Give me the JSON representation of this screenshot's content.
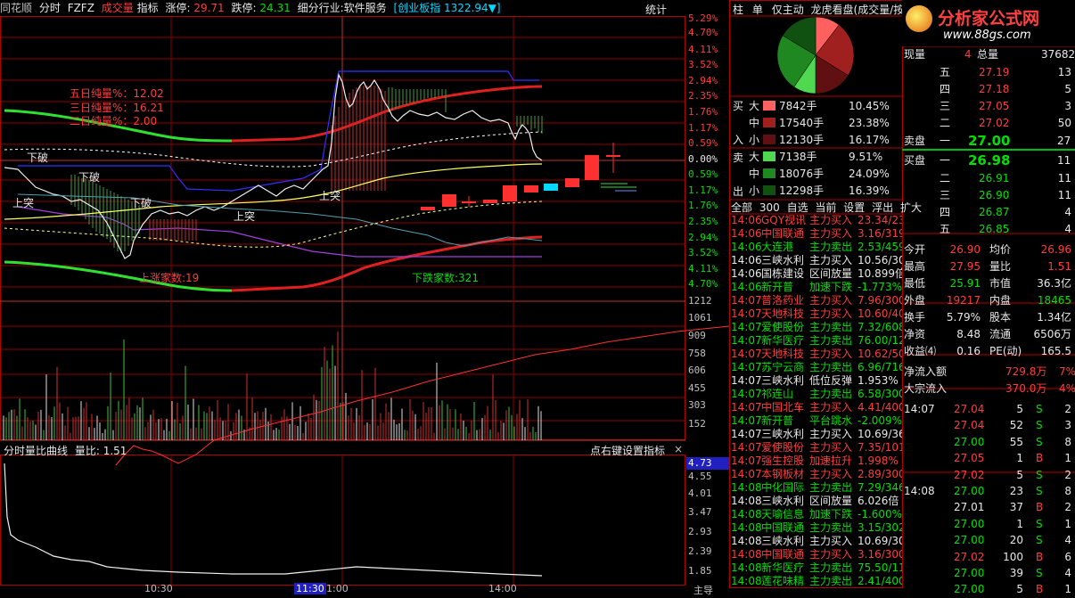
{
  "app": {
    "name": "同花顺",
    "mode": "分时",
    "code": "FZFZ"
  },
  "topbar": {
    "cjl": "成交量",
    "zb": "指标",
    "zt_label": "涨停:",
    "zt_val": "29.71",
    "dt_label": "跌停:",
    "dt_val": "24.31",
    "industry": "细分行业:软件服务",
    "index_label": "[创业板指",
    "index_val": "1322.94▼]",
    "stat": "统计"
  },
  "pct_up": [
    "5.29%",
    "4.70%",
    "4.11%",
    "3.52%",
    "2.94%",
    "2.35%",
    "1.76%",
    "1.17%",
    "0.59%"
  ],
  "pct_zero": "0.00%",
  "pct_down": [
    "0.59%",
    "1.17%",
    "1.76%",
    "2.35%",
    "2.94%",
    "3.52%",
    "4.11%",
    "4.70%"
  ],
  "vol_axis": [
    "1212",
    "1061",
    "909",
    "758",
    "606",
    "455",
    "303",
    "152"
  ],
  "ratio_axis": [
    "4.73",
    "4.55",
    "4.01",
    "3.47",
    "2.93",
    "2.39",
    "1.85"
  ],
  "annotations": {
    "five": "五日纯量%：12.02",
    "three": "三日纯量%：16.21",
    "two": "二日纯量%：2.00",
    "xiapo1": "下破",
    "xiapo2": "下破",
    "xiapo3": "下破",
    "shangtu1": "上突",
    "shangtu2": "上突",
    "shangtu3": "上突",
    "up_count": "上涨家数:19",
    "down_count": "下跌家数:321"
  },
  "subpanel": {
    "title": "分时量比曲线",
    "ratio": "量比: 1.51",
    "hint": "点右键设置指标",
    "close": "×"
  },
  "time_axis": {
    "t1": "10:30",
    "t2": "11:30",
    "t3": "1:00",
    "t4": "14:00",
    "end": "主导"
  },
  "right_tabs": [
    "柱",
    "单",
    "仅主动",
    "龙虎看盘(成交量/按)"
  ],
  "logo": {
    "title": "分析家公式网",
    "url": "www.88gs.com"
  },
  "flow": {
    "buy_label": [
      "买",
      "入"
    ],
    "sell_label": [
      "卖",
      "出"
    ],
    "buy": [
      {
        "size": "大",
        "hand": "7842手",
        "pct": "10.45%",
        "color": "#ff6060"
      },
      {
        "size": "中",
        "hand": "17540手",
        "pct": "23.38%",
        "color": "#a02020"
      },
      {
        "size": "小",
        "hand": "12130手",
        "pct": "16.17%",
        "color": "#601010"
      }
    ],
    "sell": [
      {
        "size": "大",
        "hand": "7138手",
        "pct": "9.51%",
        "color": "#50d850"
      },
      {
        "size": "中",
        "hand": "18076手",
        "pct": "24.09%",
        "color": "#208820"
      },
      {
        "size": "小",
        "hand": "12298手",
        "pct": "16.39%",
        "color": "#105010"
      }
    ],
    "tabs": [
      "全部",
      "300",
      "自选",
      "当前",
      "设置",
      "浮出",
      "扩大"
    ]
  },
  "pie": [
    10.45,
    23.38,
    16.17,
    9.51,
    24.09,
    16.39
  ],
  "pie_colors": [
    "#ff6060",
    "#a02020",
    "#601010",
    "#50d850",
    "#208820",
    "#105010"
  ],
  "list": [
    {
      "t": "14:06",
      "n": "GQY视讯",
      "a": "主力买入",
      "v": "23.34/23",
      "c": "red"
    },
    {
      "t": "14:06",
      "n": "中国联通",
      "a": "主力买入",
      "v": "3.16/319",
      "c": "red"
    },
    {
      "t": "14:06",
      "n": "大连港",
      "a": "主力卖出",
      "v": "2.53/459",
      "c": "green"
    },
    {
      "t": "14:06",
      "n": "三峡水利",
      "a": "主力买入",
      "v": "10.56/30",
      "c": "white"
    },
    {
      "t": "14:06",
      "n": "国栋建设",
      "a": "区间放量",
      "v": "10.899倍",
      "c": "white"
    },
    {
      "t": "14:06",
      "n": "新开普",
      "a": "加速下跌",
      "v": "-1.773%",
      "c": "green"
    },
    {
      "t": "14:07",
      "n": "普洛药业",
      "a": "主力买入",
      "v": "7.96/300",
      "c": "red"
    },
    {
      "t": "14:07",
      "n": "天地科技",
      "a": "主力买入",
      "v": "10.60/40",
      "c": "red"
    },
    {
      "t": "14:07",
      "n": "爱使股份",
      "a": "主力卖出",
      "v": "7.32/608",
      "c": "green"
    },
    {
      "t": "14:07",
      "n": "新华医疗",
      "a": "主力卖出",
      "v": "76.00/12",
      "c": "green"
    },
    {
      "t": "14:07",
      "n": "天地科技",
      "a": "主力买入",
      "v": "10.62/50",
      "c": "red"
    },
    {
      "t": "14:07",
      "n": "苏宁云商",
      "a": "主力卖出",
      "v": "6.96/716",
      "c": "green"
    },
    {
      "t": "14:07",
      "n": "三峡水利",
      "a": "低位反弹",
      "v": "1.953%",
      "c": "white"
    },
    {
      "t": "14:07",
      "n": "祁连山",
      "a": "主力卖出",
      "v": "6.58/300",
      "c": "green"
    },
    {
      "t": "14:07",
      "n": "中国北车",
      "a": "主力买入",
      "v": "4.41/400",
      "c": "red"
    },
    {
      "t": "14:07",
      "n": "新开普",
      "a": "平台跳水",
      "v": "-2.009%",
      "c": "green"
    },
    {
      "t": "14:07",
      "n": "三峡水利",
      "a": "主力买入",
      "v": "10.69/36",
      "c": "white"
    },
    {
      "t": "14:07",
      "n": "爱使股份",
      "a": "主力买入",
      "v": "7.35/101",
      "c": "red"
    },
    {
      "t": "14:07",
      "n": "强生控股",
      "a": "加速拉升",
      "v": "1.998%",
      "c": "red"
    },
    {
      "t": "14:07",
      "n": "本钢板材",
      "a": "主力买入",
      "v": "2.89/300",
      "c": "red"
    },
    {
      "t": "14:08",
      "n": "中化国际",
      "a": "主力卖出",
      "v": "7.29/346",
      "c": "green"
    },
    {
      "t": "14:08",
      "n": "三峡水利",
      "a": "区间放量",
      "v": "6.026倍",
      "c": "white"
    },
    {
      "t": "14:08",
      "n": "天喻信息",
      "a": "加速下跌",
      "v": "-1.600%",
      "c": "green"
    },
    {
      "t": "14:08",
      "n": "中国联通",
      "a": "主力卖出",
      "v": "3.15/302",
      "c": "green"
    },
    {
      "t": "14:08",
      "n": "三峡水利",
      "a": "主力买入",
      "v": "10.69/30",
      "c": "white"
    },
    {
      "t": "14:08",
      "n": "中国联通",
      "a": "主力买入",
      "v": "3.16/300",
      "c": "red"
    },
    {
      "t": "14:08",
      "n": "新华医疗",
      "a": "主力卖出",
      "v": "75.50/11",
      "c": "green"
    },
    {
      "t": "14:08",
      "n": "莲花味精",
      "a": "主力卖出",
      "v": "2.41/400",
      "c": "green"
    }
  ],
  "quote": {
    "xianliang_label": "现量",
    "xianliang": "4",
    "zongliang_label": "总量",
    "zongliang": "37682",
    "sell_levels": [
      {
        "k": "五",
        "p": "27.19",
        "v": "13"
      },
      {
        "k": "四",
        "p": "27.18",
        "v": "5"
      },
      {
        "k": "三",
        "p": "27.05",
        "v": "3"
      },
      {
        "k": "二",
        "p": "27.02",
        "v": "50"
      }
    ],
    "sell1_label": "卖盘",
    "sell1_k": "一",
    "sell1_p": "27.00",
    "sell1_v": "27",
    "buy1_label": "买盘",
    "buy1_k": "一",
    "buy1_p": "26.98",
    "buy1_v": "11",
    "buy_levels": [
      {
        "k": "二",
        "p": "26.91",
        "v": "11"
      },
      {
        "k": "三",
        "p": "26.90",
        "v": "11"
      },
      {
        "k": "四",
        "p": "26.87",
        "v": "4"
      },
      {
        "k": "五",
        "p": "26.85",
        "v": "4"
      }
    ],
    "stats": [
      {
        "l1": "今开",
        "v1": "26.90",
        "c1": "red",
        "l2": "均价",
        "v2": "26.96",
        "c2": "red"
      },
      {
        "l1": "最高",
        "v1": "27.95",
        "c1": "red",
        "l2": "量比",
        "v2": "1.51",
        "c2": "red"
      },
      {
        "l1": "最低",
        "v1": "25.91",
        "c1": "green",
        "l2": "市值",
        "v2": "36.3亿",
        "c2": "white"
      },
      {
        "l1": "外盘",
        "v1": "19217",
        "c1": "red",
        "l2": "内盘",
        "v2": "18465",
        "c2": "green"
      },
      {
        "l1": "换手",
        "v1": "5.79%",
        "c1": "white",
        "l2": "股本",
        "v2": "1.34亿",
        "c2": "white"
      },
      {
        "l1": "净资",
        "v1": "8.48",
        "c1": "white",
        "l2": "流通",
        "v2": "6506万",
        "c2": "white"
      },
      {
        "l1": "收益⑷",
        "v1": "0.16",
        "c1": "white",
        "l2": "PE(动)",
        "v2": "165.5",
        "c2": "white"
      }
    ],
    "jlr_label": "净流入额",
    "jlr": "729.8万",
    "jlr_pct": "7%",
    "dzlr_label": "大宗流入",
    "dzlr": "370.0万",
    "dzlr_pct": "4%"
  },
  "ticks": [
    {
      "t": "14:07",
      "p": "27.04",
      "v": "5",
      "d": "S",
      "n": "2"
    },
    {
      "t": "",
      "p": "27.04",
      "v": "52",
      "d": "S",
      "n": "3"
    },
    {
      "t": "",
      "p": "27.00",
      "v": "55",
      "d": "S",
      "n": "8"
    },
    {
      "t": "",
      "p": "27.05",
      "v": "1",
      "d": "B",
      "n": "1"
    },
    {
      "t": "",
      "p": "27.02",
      "v": "5",
      "d": "S",
      "n": "2"
    },
    {
      "t": "14:08",
      "p": "27.00",
      "v": "23",
      "d": "S",
      "n": "8"
    },
    {
      "t": "",
      "p": "27.01",
      "v": "37",
      "d": "B",
      "n": "2"
    },
    {
      "t": "",
      "p": "27.00",
      "v": "1",
      "d": "S",
      "n": "1"
    },
    {
      "t": "",
      "p": "27.00",
      "v": "20",
      "d": "S",
      "n": "4"
    },
    {
      "t": "",
      "p": "27.02",
      "v": "100",
      "d": "B",
      "n": "6"
    },
    {
      "t": "",
      "p": "27.00",
      "v": "39",
      "d": "S",
      "n": "4"
    },
    {
      "t": "",
      "p": "27.00",
      "v": "5",
      "d": "B",
      "n": "1"
    }
  ],
  "tick_colors": [
    "red",
    "red",
    "green",
    "red",
    "red",
    "green",
    "white",
    "green",
    "green",
    "red",
    "green",
    "green"
  ]
}
